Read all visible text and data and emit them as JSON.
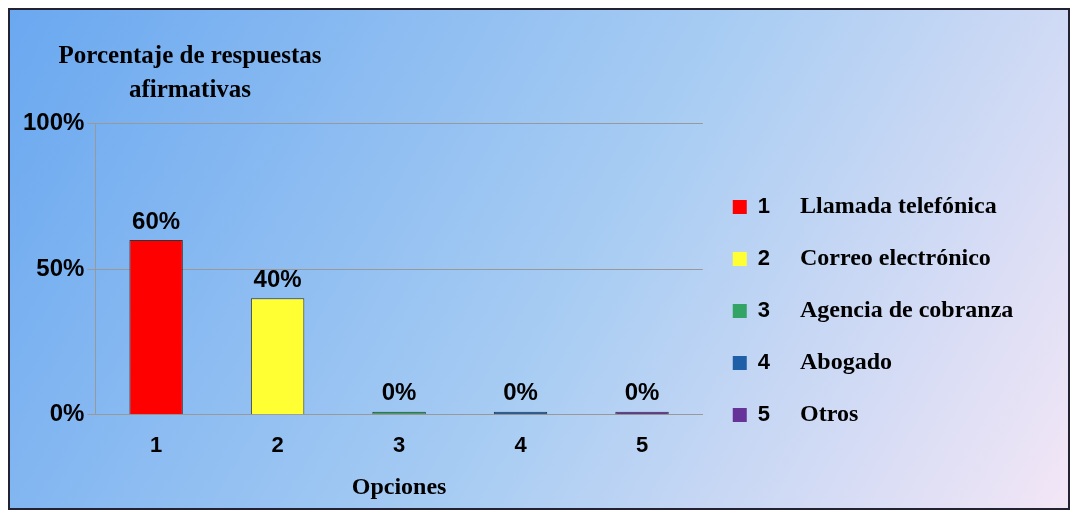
{
  "chart_data": {
    "type": "bar",
    "title": "Porcentaje de respuestas afirmativas",
    "xlabel": "Opciones",
    "categories": [
      "1",
      "2",
      "3",
      "4",
      "5"
    ],
    "stacked": true,
    "series": [
      {
        "name": "1",
        "color": "#ff0000",
        "values": [
          60,
          null,
          null,
          null,
          null
        ],
        "value_labels": [
          "60%",
          null,
          null,
          null,
          null
        ]
      },
      {
        "name": "2",
        "color": "#ffff33",
        "values": [
          null,
          40,
          null,
          null,
          null
        ],
        "value_labels": [
          null,
          "40%",
          null,
          null,
          null
        ]
      },
      {
        "name": "3",
        "color": "#33a366",
        "values": [
          null,
          null,
          0,
          null,
          null
        ],
        "value_labels": [
          null,
          null,
          "0%",
          null,
          null
        ]
      },
      {
        "name": "4",
        "color": "#1f5fa8",
        "values": [
          null,
          null,
          null,
          0,
          null
        ],
        "value_labels": [
          null,
          null,
          null,
          "0%",
          null
        ]
      },
      {
        "name": "5",
        "color": "#663399",
        "values": [
          null,
          null,
          null,
          null,
          0
        ],
        "value_labels": [
          null,
          null,
          null,
          null,
          "0%"
        ]
      }
    ],
    "ylim": [
      0,
      100
    ],
    "yticks": [
      {
        "value": 0,
        "label": "0%"
      },
      {
        "value": 50,
        "label": "50%"
      },
      {
        "value": 100,
        "label": "100%"
      }
    ],
    "grid": "y",
    "legend": "right",
    "annotations": [
      "Llamada telefónica",
      "Correo electrónico",
      "Agencia de cobranza",
      "Abogado",
      "Otros"
    ]
  }
}
